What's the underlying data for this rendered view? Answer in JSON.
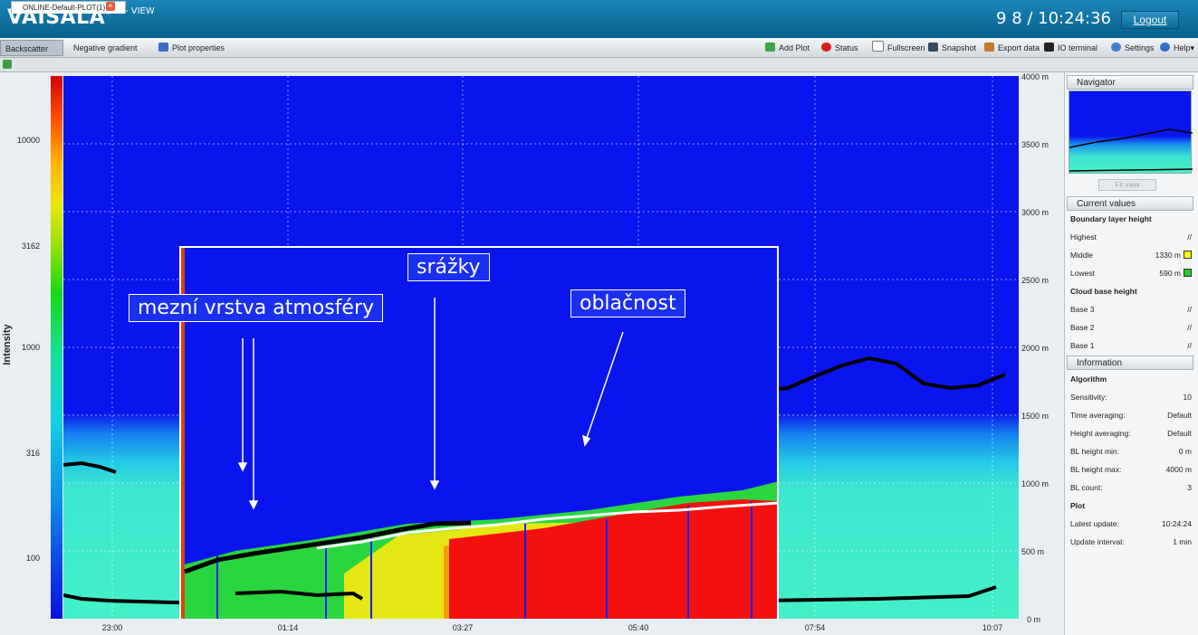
{
  "header": {
    "brand": "VAISALA",
    "product": "/ BL- VIEW",
    "clock": "9 8 / 10:24:36",
    "logout": "Logout"
  },
  "toolbar": {
    "left": [
      "Backscatter",
      "Negative gradient",
      "Plot properties"
    ],
    "right": [
      "Add Plot",
      "Status",
      "Fullscreen",
      "Snapshot",
      "Export data",
      "IO terminal",
      "Settings",
      "Help"
    ]
  },
  "tab": {
    "label": "ONLINE-Default-PLOT(1)"
  },
  "plot": {
    "y_axis_label": "Intensity",
    "intensity_ticks": [
      "10000",
      "3162",
      "1000",
      "316",
      "100"
    ],
    "height_ticks": [
      "4000 m",
      "3500 m",
      "3000 m",
      "2500 m",
      "2000 m",
      "1500 m",
      "1000 m",
      "500 m",
      "0 m"
    ],
    "time_ticks": [
      "23:00",
      "01:14",
      "03:27",
      "05:40",
      "07:54",
      "10:07"
    ]
  },
  "annotations": {
    "boundary_layer": "mezní vrstva atmosféry",
    "precipitation": "srážky",
    "cloudiness": "oblačnost"
  },
  "navigator": {
    "title": "Navigator",
    "fit_view": "Fit view"
  },
  "current_values": {
    "title": "Current values",
    "bl_title": "Boundary layer height",
    "highest": {
      "label": "Highest",
      "value": "//"
    },
    "middle": {
      "label": "Middle",
      "value": "1330 m",
      "color": "#ffff00"
    },
    "lowest": {
      "label": "Lowest",
      "value": "590 m",
      "color": "#22cc22"
    },
    "cb_title": "Cloud base height",
    "base3": {
      "label": "Base 3",
      "value": "//"
    },
    "base2": {
      "label": "Base 2",
      "value": "//"
    },
    "base1": {
      "label": "Base 1",
      "value": "//"
    }
  },
  "information": {
    "title": "Information",
    "algorithm_title": "Algorithm",
    "sensitivity": {
      "label": "Sensitivity:",
      "value": "10"
    },
    "time_averaging": {
      "label": "Time averaging:",
      "value": "Default"
    },
    "height_averaging": {
      "label": "Height averaging:",
      "value": "Default"
    },
    "bl_min": {
      "label": "BL height min:",
      "value": "0 m"
    },
    "bl_max": {
      "label": "BL height max:",
      "value": "4000 m"
    },
    "bl_count": {
      "label": "BL count:",
      "value": "3"
    },
    "plot_title": "Plot",
    "latest_update": {
      "label": "Latest update:",
      "value": "10:24:24"
    },
    "update_interval": {
      "label": "Update interval:",
      "value": "1 min"
    }
  }
}
